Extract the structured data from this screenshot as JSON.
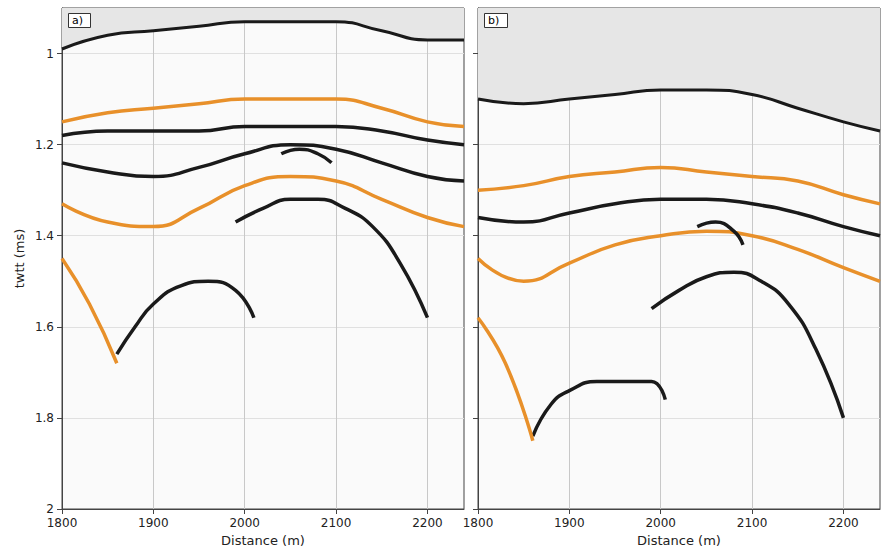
{
  "chart_data": [
    {
      "type": "line",
      "title": "a)",
      "x_label": "Distance (m)",
      "y_label": "twtt (ms)",
      "xlim": [
        1800,
        2240
      ],
      "xticks": [
        1800,
        1900,
        2000,
        2100,
        2200
      ],
      "ylim": [
        0.9,
        2
      ],
      "yticks": [
        1,
        1.2,
        1.4,
        1.6,
        1.8,
        2
      ],
      "grid": true,
      "series": [
        {
          "type": "area",
          "color": "#1a1a1a",
          "x": [
            1800,
            1850,
            1900,
            1950,
            2000,
            2050,
            2100,
            2150,
            2200,
            2240
          ],
          "values": [
            0.99,
            0.96,
            0.95,
            0.94,
            0.93,
            0.93,
            0.93,
            0.95,
            0.97,
            0.97
          ]
        },
        {
          "color": "#e8902a",
          "x": [
            1800,
            1850,
            1900,
            1950,
            2000,
            2050,
            2100,
            2150,
            2200,
            2240
          ],
          "values": [
            1.15,
            1.13,
            1.12,
            1.11,
            1.1,
            1.1,
            1.1,
            1.12,
            1.15,
            1.16
          ]
        },
        {
          "color": "#1a1a1a",
          "x": [
            1800,
            1850,
            1900,
            1950,
            2000,
            2050,
            2100,
            2150,
            2200,
            2240
          ],
          "values": [
            1.18,
            1.17,
            1.17,
            1.17,
            1.16,
            1.16,
            1.16,
            1.17,
            1.19,
            1.2
          ]
        },
        {
          "color": "#1a1a1a",
          "x": [
            1800,
            1850,
            1900,
            1950,
            2000,
            2050,
            2100,
            2150,
            2200,
            2240
          ],
          "values": [
            1.24,
            1.26,
            1.27,
            1.25,
            1.22,
            1.2,
            1.21,
            1.24,
            1.27,
            1.28
          ]
        },
        {
          "color": "#e8902a",
          "x": [
            1800,
            1850,
            1900,
            1950,
            2000,
            2050,
            2100,
            2150,
            2200,
            2240
          ],
          "values": [
            1.33,
            1.37,
            1.38,
            1.34,
            1.29,
            1.27,
            1.28,
            1.32,
            1.36,
            1.38
          ]
        },
        {
          "color": "#1a1a1a",
          "x": [
            1990,
            2020,
            2050,
            2080,
            2110,
            2140,
            2170,
            2200
          ],
          "values": [
            1.37,
            1.34,
            1.32,
            1.32,
            1.34,
            1.38,
            1.46,
            1.58
          ]
        },
        {
          "color": "#1a1a1a",
          "x": [
            1860,
            1880,
            1900,
            1930,
            1960,
            1990,
            2010
          ],
          "values": [
            1.66,
            1.6,
            1.55,
            1.51,
            1.5,
            1.52,
            1.58
          ]
        },
        {
          "color": "#e8902a",
          "x": [
            1800,
            1830,
            1860
          ],
          "values": [
            1.45,
            1.55,
            1.68
          ]
        },
        {
          "color": "#1a1a1a",
          "x": [
            2040,
            2060,
            2080,
            2095
          ],
          "values": [
            1.22,
            1.21,
            1.22,
            1.24
          ]
        }
      ]
    },
    {
      "type": "line",
      "title": "b)",
      "x_label": "Distance (m)",
      "xlim": [
        1800,
        2240
      ],
      "xticks": [
        1800,
        1900,
        2000,
        2100,
        2200
      ],
      "ylim": [
        0.9,
        2
      ],
      "yticks": [
        1,
        1.2,
        1.4,
        1.6,
        1.8,
        2
      ],
      "grid": true,
      "tick_labels": "x",
      "series": [
        {
          "type": "area",
          "color": "#1a1a1a",
          "x": [
            1800,
            1850,
            1900,
            1950,
            2000,
            2050,
            2100,
            2150,
            2200,
            2240
          ],
          "values": [
            1.1,
            1.11,
            1.1,
            1.09,
            1.08,
            1.08,
            1.09,
            1.12,
            1.15,
            1.17
          ]
        },
        {
          "color": "#e8902a",
          "x": [
            1800,
            1850,
            1900,
            1950,
            2000,
            2050,
            2100,
            2150,
            2200,
            2240
          ],
          "values": [
            1.3,
            1.29,
            1.27,
            1.26,
            1.25,
            1.26,
            1.27,
            1.28,
            1.31,
            1.33
          ]
        },
        {
          "color": "#1a1a1a",
          "x": [
            1800,
            1850,
            1900,
            1950,
            2000,
            2050,
            2100,
            2150,
            2200,
            2240
          ],
          "values": [
            1.36,
            1.37,
            1.35,
            1.33,
            1.32,
            1.32,
            1.33,
            1.35,
            1.38,
            1.4
          ]
        },
        {
          "color": "#e8902a",
          "x": [
            1800,
            1850,
            1900,
            1950,
            2000,
            2050,
            2100,
            2150,
            2200,
            2240
          ],
          "values": [
            1.45,
            1.5,
            1.46,
            1.42,
            1.4,
            1.39,
            1.4,
            1.43,
            1.47,
            1.5
          ]
        },
        {
          "color": "#1a1a1a",
          "x": [
            1990,
            2020,
            2050,
            2080,
            2110,
            2140,
            2170,
            2200
          ],
          "values": [
            1.56,
            1.52,
            1.49,
            1.48,
            1.5,
            1.55,
            1.65,
            1.8
          ]
        },
        {
          "color": "#1a1a1a",
          "x": [
            1860,
            1880,
            1900,
            1930,
            1960,
            1990,
            2005
          ],
          "values": [
            1.84,
            1.77,
            1.74,
            1.72,
            1.72,
            1.72,
            1.76
          ]
        },
        {
          "color": "#e8902a",
          "x": [
            1800,
            1830,
            1860
          ],
          "values": [
            1.58,
            1.68,
            1.85
          ]
        },
        {
          "color": "#1a1a1a",
          "x": [
            2040,
            2060,
            2080,
            2090
          ],
          "values": [
            1.38,
            1.37,
            1.39,
            1.42
          ]
        }
      ]
    }
  ]
}
